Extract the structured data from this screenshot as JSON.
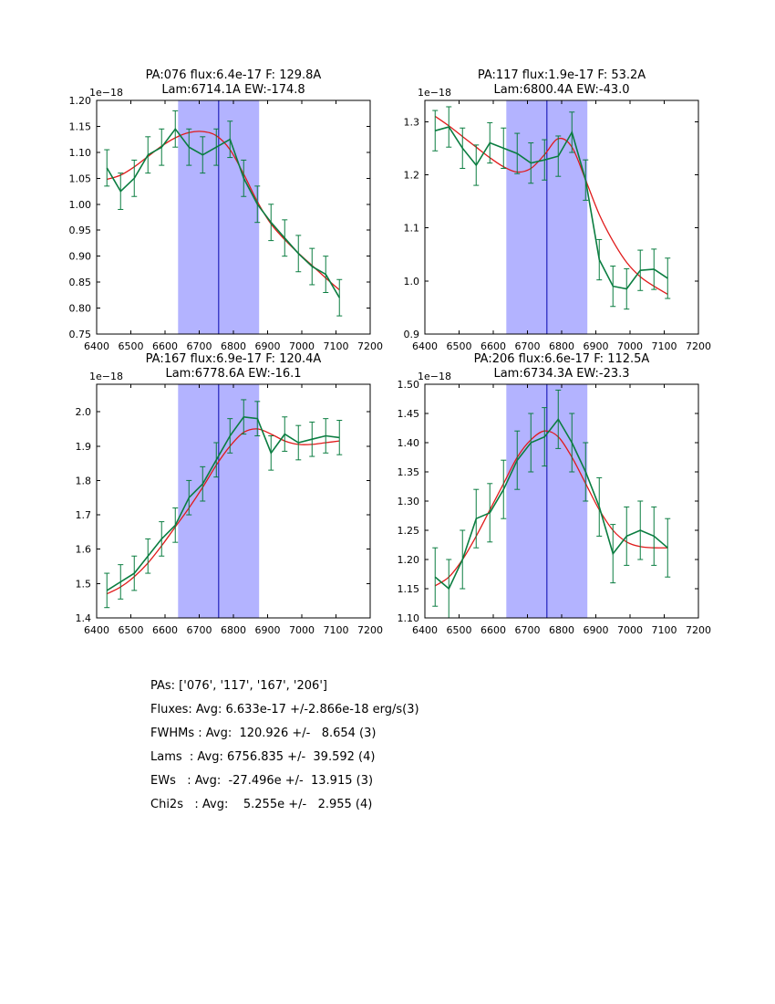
{
  "figure": {
    "background": "#ffffff",
    "colors": {
      "data_line": "#0a7d40",
      "fit_line": "#e01b1b",
      "band": "#b3b3ff",
      "center_line": "#2222bb",
      "axis": "#000000"
    }
  },
  "chart_data": [
    {
      "name": "PA076",
      "type": "line",
      "title_line1": "PA:076 flux:6.4e-17 F: 129.8A",
      "title_line2": "Lam:6714.1A EW:-174.8",
      "offset_label": "1e−18",
      "xlim": [
        6400,
        7200
      ],
      "ylim": [
        0.75,
        1.2
      ],
      "xticks": [
        6400,
        6500,
        6600,
        6700,
        6800,
        6900,
        7000,
        7100,
        7200
      ],
      "yticks": [
        0.75,
        0.8,
        0.85,
        0.9,
        0.95,
        1.0,
        1.05,
        1.1,
        1.15,
        1.2
      ],
      "ytick_labels": [
        "0.75",
        "0.80",
        "0.85",
        "0.90",
        "0.95",
        "1.00",
        "1.05",
        "1.10",
        "1.15",
        "1.20"
      ],
      "band": [
        6638,
        6875
      ],
      "center_line": 6756.8,
      "x": [
        6430,
        6470,
        6510,
        6550,
        6590,
        6630,
        6670,
        6710,
        6750,
        6790,
        6830,
        6870,
        6910,
        6950,
        6990,
        7030,
        7070,
        7110
      ],
      "y": [
        1.07,
        1.025,
        1.05,
        1.095,
        1.11,
        1.145,
        1.11,
        1.095,
        1.11,
        1.125,
        1.05,
        1.0,
        0.965,
        0.935,
        0.905,
        0.88,
        0.865,
        0.82
      ],
      "yerr": 0.035,
      "fit_y": [
        1.048,
        1.056,
        1.072,
        1.092,
        1.112,
        1.128,
        1.138,
        1.14,
        1.132,
        1.105,
        1.058,
        1.005,
        0.962,
        0.932,
        0.906,
        0.882,
        0.858,
        0.835
      ]
    },
    {
      "name": "PA117",
      "type": "line",
      "title_line1": "PA:117 flux:1.9e-17 F: 53.2A",
      "title_line2": "Lam:6800.4A EW:-43.0",
      "offset_label": "1e−18",
      "xlim": [
        6400,
        7200
      ],
      "ylim": [
        0.9,
        1.34
      ],
      "xticks": [
        6400,
        6500,
        6600,
        6700,
        6800,
        6900,
        7000,
        7100,
        7200
      ],
      "yticks": [
        0.9,
        1.0,
        1.1,
        1.2,
        1.3
      ],
      "ytick_labels": [
        "0.9",
        "1.0",
        "1.1",
        "1.2",
        "1.3"
      ],
      "band": [
        6638,
        6875
      ],
      "center_line": 6756.8,
      "x": [
        6430,
        6470,
        6510,
        6550,
        6590,
        6630,
        6670,
        6710,
        6750,
        6790,
        6830,
        6870,
        6910,
        6950,
        6990,
        7030,
        7070,
        7110
      ],
      "y": [
        1.283,
        1.29,
        1.25,
        1.218,
        1.26,
        1.25,
        1.24,
        1.222,
        1.228,
        1.235,
        1.28,
        1.19,
        1.04,
        0.99,
        0.985,
        1.02,
        1.022,
        1.005
      ],
      "yerr": 0.038,
      "fit_y": [
        1.31,
        1.292,
        1.272,
        1.252,
        1.232,
        1.215,
        1.205,
        1.212,
        1.238,
        1.268,
        1.252,
        1.19,
        1.125,
        1.075,
        1.035,
        1.008,
        0.99,
        0.975
      ]
    },
    {
      "name": "PA167",
      "type": "line",
      "title_line1": "PA:167 flux:6.9e-17 F: 120.4A",
      "title_line2": "Lam:6778.6A EW:-16.1",
      "offset_label": "1e−18",
      "xlim": [
        6400,
        7200
      ],
      "ylim": [
        1.4,
        2.08
      ],
      "xticks": [
        6400,
        6500,
        6600,
        6700,
        6800,
        6900,
        7000,
        7100,
        7200
      ],
      "yticks": [
        1.4,
        1.5,
        1.6,
        1.7,
        1.8,
        1.9,
        2.0
      ],
      "ytick_labels": [
        "1.4",
        "1.5",
        "1.6",
        "1.7",
        "1.8",
        "1.9",
        "2.0"
      ],
      "band": [
        6638,
        6875
      ],
      "center_line": 6756.8,
      "x": [
        6430,
        6470,
        6510,
        6550,
        6590,
        6630,
        6670,
        6710,
        6750,
        6790,
        6830,
        6870,
        6910,
        6950,
        6990,
        7030,
        7070,
        7110
      ],
      "y": [
        1.48,
        1.505,
        1.53,
        1.58,
        1.63,
        1.67,
        1.75,
        1.79,
        1.86,
        1.93,
        1.985,
        1.98,
        1.88,
        1.935,
        1.91,
        1.92,
        1.93,
        1.925
      ],
      "yerr": 0.05,
      "fit_y": [
        1.47,
        1.49,
        1.52,
        1.56,
        1.61,
        1.665,
        1.72,
        1.78,
        1.845,
        1.9,
        1.94,
        1.95,
        1.935,
        1.915,
        1.905,
        1.905,
        1.91,
        1.915
      ]
    },
    {
      "name": "PA206",
      "type": "line",
      "title_line1": "PA:206 flux:6.6e-17 F: 112.5A",
      "title_line2": "Lam:6734.3A EW:-23.3",
      "offset_label": "1e−18",
      "xlim": [
        6400,
        7200
      ],
      "ylim": [
        1.1,
        1.5
      ],
      "xticks": [
        6400,
        6500,
        6600,
        6700,
        6800,
        6900,
        7000,
        7100,
        7200
      ],
      "yticks": [
        1.1,
        1.15,
        1.2,
        1.25,
        1.3,
        1.35,
        1.4,
        1.45,
        1.5
      ],
      "ytick_labels": [
        "1.10",
        "1.15",
        "1.20",
        "1.25",
        "1.30",
        "1.35",
        "1.40",
        "1.45",
        "1.50"
      ],
      "band": [
        6638,
        6875
      ],
      "center_line": 6756.8,
      "x": [
        6430,
        6470,
        6510,
        6550,
        6590,
        6630,
        6670,
        6710,
        6750,
        6790,
        6830,
        6870,
        6910,
        6950,
        6990,
        7030,
        7070,
        7110
      ],
      "y": [
        1.17,
        1.15,
        1.2,
        1.27,
        1.28,
        1.32,
        1.37,
        1.4,
        1.41,
        1.44,
        1.4,
        1.35,
        1.29,
        1.21,
        1.24,
        1.25,
        1.24,
        1.22
      ],
      "yerr": 0.05,
      "fit_y": [
        1.155,
        1.17,
        1.2,
        1.24,
        1.285,
        1.33,
        1.375,
        1.405,
        1.42,
        1.41,
        1.375,
        1.33,
        1.285,
        1.25,
        1.23,
        1.222,
        1.22,
        1.22
      ]
    }
  ],
  "summary": {
    "lines": [
      "PAs: ['076', '117', '167', '206']",
      "Fluxes: Avg: 6.633e-17 +/-2.866e-18 erg/s(3)",
      "FWHMs : Avg:  120.926 +/-   8.654 (3)",
      "Lams  : Avg: 6756.835 +/-  39.592 (4)",
      "EWs   : Avg:  -27.496e +/-  13.915 (3)",
      "Chi2s   : Avg:    5.255e +/-   2.955 (4)"
    ]
  }
}
